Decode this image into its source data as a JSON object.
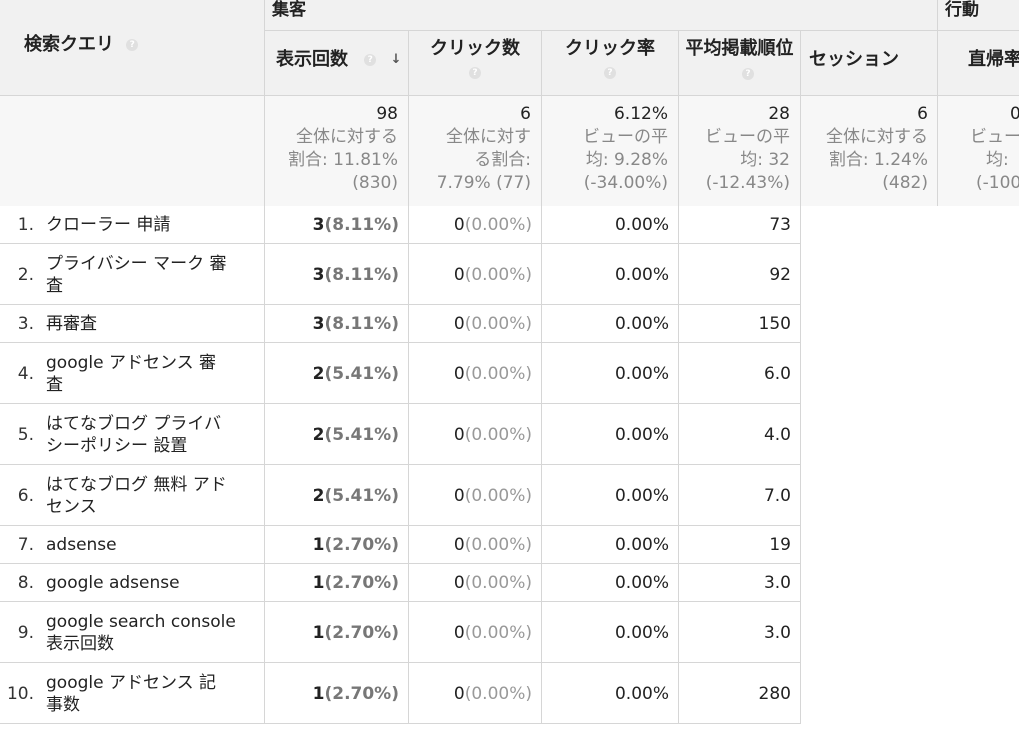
{
  "groups": {
    "acquisition": "集客",
    "behavior": "行動"
  },
  "columns": {
    "query": "検索クエリ",
    "impressions": "表示回数",
    "clicks": "クリック数",
    "ctr": "クリック率",
    "position": "平均掲載順位",
    "sessions": "セッション",
    "bounce": "直帰率"
  },
  "totals": {
    "impressions": {
      "value": "98",
      "line1": "全体に対する",
      "line2": "割合: 11.81%",
      "line3": "(830)"
    },
    "clicks": {
      "value": "6",
      "line1": "全体に対す",
      "line2": "る割合:",
      "line3": "7.79% (77)"
    },
    "ctr": {
      "value": "6.12%",
      "line1": "ビューの平",
      "line2": "均: 9.28%",
      "line3": "(-34.00%)"
    },
    "position": {
      "value": "28",
      "line1": "ビューの平",
      "line2": "均: 32",
      "line3": "(-12.43%)"
    },
    "sessions": {
      "value": "6",
      "line1": "全体に対する",
      "line2": "割合: 1.24%",
      "line3": "(482)"
    },
    "bounce": {
      "value": "0",
      "line1": "ビュー",
      "line2": "均:",
      "line3": "(-100"
    }
  },
  "rows": [
    {
      "num": "1.",
      "q1": "クローラー 申請",
      "q2": "",
      "imp": "3",
      "imp_pct": "(8.11%)",
      "clk": "0",
      "clk_pct": "(0.00%)",
      "ctr": "0.00%",
      "pos": "73"
    },
    {
      "num": "2.",
      "q1": "プライバシー マーク 審",
      "q2": "査",
      "imp": "3",
      "imp_pct": "(8.11%)",
      "clk": "0",
      "clk_pct": "(0.00%)",
      "ctr": "0.00%",
      "pos": "92"
    },
    {
      "num": "3.",
      "q1": "再審査",
      "q2": "",
      "imp": "3",
      "imp_pct": "(8.11%)",
      "clk": "0",
      "clk_pct": "(0.00%)",
      "ctr": "0.00%",
      "pos": "150"
    },
    {
      "num": "4.",
      "q1": "google アドセンス 審",
      "q2": "査",
      "imp": "2",
      "imp_pct": "(5.41%)",
      "clk": "0",
      "clk_pct": "(0.00%)",
      "ctr": "0.00%",
      "pos": "6.0"
    },
    {
      "num": "5.",
      "q1": "はてなブログ プライバ",
      "q2": "シーポリシー 設置",
      "imp": "2",
      "imp_pct": "(5.41%)",
      "clk": "0",
      "clk_pct": "(0.00%)",
      "ctr": "0.00%",
      "pos": "4.0"
    },
    {
      "num": "6.",
      "q1": "はてなブログ 無料 アド",
      "q2": "センス",
      "imp": "2",
      "imp_pct": "(5.41%)",
      "clk": "0",
      "clk_pct": "(0.00%)",
      "ctr": "0.00%",
      "pos": "7.0"
    },
    {
      "num": "7.",
      "q1": "adsense",
      "q2": "",
      "imp": "1",
      "imp_pct": "(2.70%)",
      "clk": "0",
      "clk_pct": "(0.00%)",
      "ctr": "0.00%",
      "pos": "19"
    },
    {
      "num": "8.",
      "q1": "google adsense",
      "q2": "",
      "imp": "1",
      "imp_pct": "(2.70%)",
      "clk": "0",
      "clk_pct": "(0.00%)",
      "ctr": "0.00%",
      "pos": "3.0"
    },
    {
      "num": "9.",
      "q1": "google search console",
      "q2": "表示回数",
      "imp": "1",
      "imp_pct": "(2.70%)",
      "clk": "0",
      "clk_pct": "(0.00%)",
      "ctr": "0.00%",
      "pos": "3.0"
    },
    {
      "num": "10.",
      "q1": "google アドセンス 記",
      "q2": "事数",
      "imp": "1",
      "imp_pct": "(2.70%)",
      "clk": "0",
      "clk_pct": "(0.00%)",
      "ctr": "0.00%",
      "pos": "280"
    }
  ]
}
